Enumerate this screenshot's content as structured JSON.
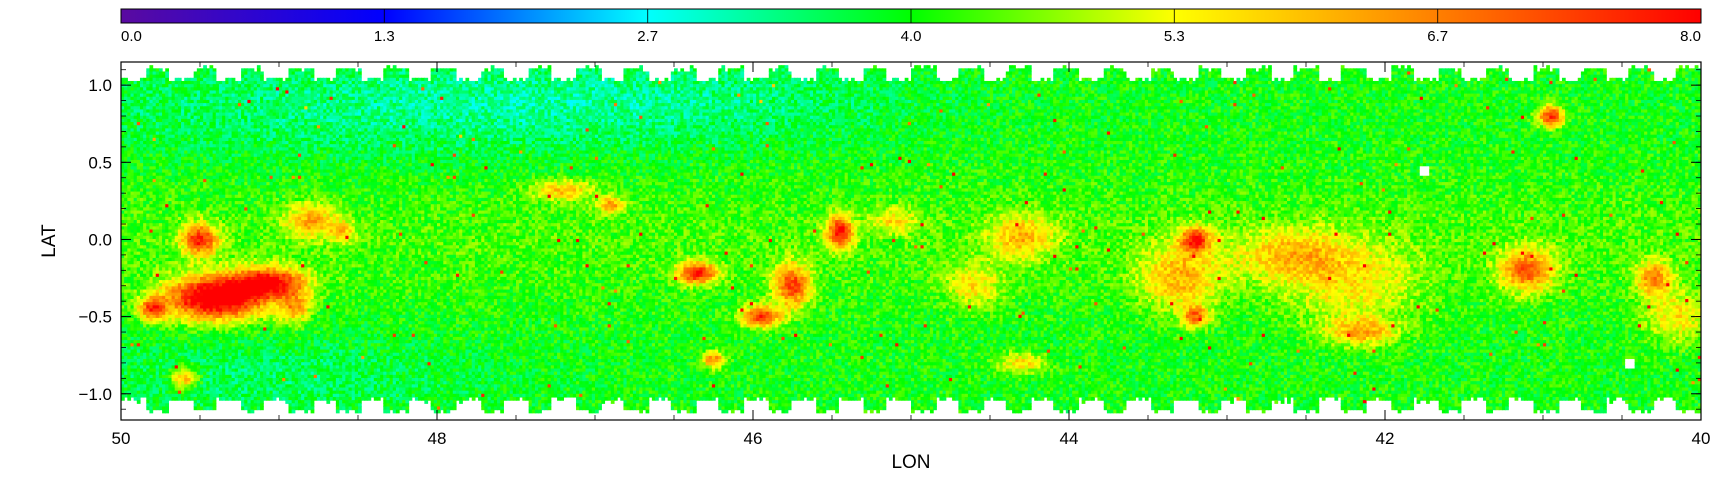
{
  "chart_data": {
    "type": "heatmap",
    "title": "",
    "xlabel": "LON",
    "ylabel": "LAT",
    "xlim": [
      50,
      40
    ],
    "ylim": [
      -1.17,
      1.15
    ],
    "x_ticks": [
      "50",
      "48",
      "46",
      "44",
      "42",
      "40"
    ],
    "x_tick_values": [
      50,
      48,
      46,
      44,
      42,
      40
    ],
    "y_ticks": [
      "1.0",
      "0.5",
      "0.0",
      "−0.5",
      "−1.0"
    ],
    "y_tick_values": [
      1.0,
      0.5,
      0.0,
      -0.5,
      -1.0
    ],
    "colorbar": {
      "range": [
        0.0,
        8.0
      ],
      "ticks": [
        "0.0",
        "1.3",
        "2.7",
        "4.0",
        "5.3",
        "6.7",
        "8.0"
      ],
      "tick_values": [
        0.0,
        1.333,
        2.667,
        4.0,
        5.333,
        6.667,
        8.0
      ],
      "colormap_stops": [
        "#5a0aa0",
        "#0000ff",
        "#00ffff",
        "#00ff00",
        "#ffff00",
        "#ff7f00",
        "#ff0000"
      ]
    },
    "data_extent": {
      "lat_min": -1.05,
      "lat_max": 1.05,
      "edge_jitter": 0.06
    },
    "background_value": 4.0,
    "features": [
      {
        "lon": 49.4,
        "lat": -0.38,
        "sigma_lon": 0.22,
        "sigma_lat": 0.1,
        "amp": 4.8
      },
      {
        "lon": 49.05,
        "lat": -0.28,
        "sigma_lon": 0.16,
        "sigma_lat": 0.07,
        "amp": 3.6
      },
      {
        "lon": 49.5,
        "lat": 0.0,
        "sigma_lon": 0.08,
        "sigma_lat": 0.07,
        "amp": 3.4
      },
      {
        "lon": 49.8,
        "lat": -0.45,
        "sigma_lon": 0.06,
        "sigma_lat": 0.05,
        "amp": 3.0
      },
      {
        "lon": 48.9,
        "lat": -0.45,
        "sigma_lon": 0.07,
        "sigma_lat": 0.07,
        "amp": 2.0
      },
      {
        "lon": 48.8,
        "lat": 0.12,
        "sigma_lon": 0.12,
        "sigma_lat": 0.08,
        "amp": 1.9
      },
      {
        "lon": 48.6,
        "lat": 0.05,
        "sigma_lon": 0.06,
        "sigma_lat": 0.05,
        "amp": 1.5
      },
      {
        "lon": 49.6,
        "lat": -0.9,
        "sigma_lon": 0.06,
        "sigma_lat": 0.05,
        "amp": 2.4
      },
      {
        "lon": 47.2,
        "lat": 0.32,
        "sigma_lon": 0.14,
        "sigma_lat": 0.05,
        "amp": 1.8
      },
      {
        "lon": 46.9,
        "lat": 0.22,
        "sigma_lon": 0.06,
        "sigma_lat": 0.04,
        "amp": 2.2
      },
      {
        "lon": 46.35,
        "lat": -0.22,
        "sigma_lon": 0.09,
        "sigma_lat": 0.05,
        "amp": 3.6
      },
      {
        "lon": 45.75,
        "lat": -0.3,
        "sigma_lon": 0.08,
        "sigma_lat": 0.1,
        "amp": 3.2
      },
      {
        "lon": 45.95,
        "lat": -0.5,
        "sigma_lon": 0.09,
        "sigma_lat": 0.05,
        "amp": 3.3
      },
      {
        "lon": 45.45,
        "lat": 0.05,
        "sigma_lon": 0.06,
        "sigma_lat": 0.08,
        "amp": 3.6
      },
      {
        "lon": 46.25,
        "lat": -0.78,
        "sigma_lon": 0.05,
        "sigma_lat": 0.04,
        "amp": 2.6
      },
      {
        "lon": 45.1,
        "lat": 0.12,
        "sigma_lon": 0.1,
        "sigma_lat": 0.06,
        "amp": 1.4
      },
      {
        "lon": 44.3,
        "lat": 0.02,
        "sigma_lon": 0.15,
        "sigma_lat": 0.1,
        "amp": 1.8
      },
      {
        "lon": 44.6,
        "lat": -0.3,
        "sigma_lon": 0.12,
        "sigma_lat": 0.1,
        "amp": 1.5
      },
      {
        "lon": 44.3,
        "lat": -0.8,
        "sigma_lon": 0.12,
        "sigma_lat": 0.05,
        "amp": 1.6
      },
      {
        "lon": 43.2,
        "lat": 0.0,
        "sigma_lon": 0.07,
        "sigma_lat": 0.06,
        "amp": 3.2
      },
      {
        "lon": 43.3,
        "lat": -0.25,
        "sigma_lon": 0.18,
        "sigma_lat": 0.15,
        "amp": 1.9
      },
      {
        "lon": 43.2,
        "lat": -0.5,
        "sigma_lon": 0.06,
        "sigma_lat": 0.05,
        "amp": 2.6
      },
      {
        "lon": 42.6,
        "lat": -0.1,
        "sigma_lon": 0.25,
        "sigma_lat": 0.12,
        "amp": 1.6
      },
      {
        "lon": 42.15,
        "lat": -0.6,
        "sigma_lon": 0.15,
        "sigma_lat": 0.06,
        "amp": 2.0
      },
      {
        "lon": 42.2,
        "lat": -0.3,
        "sigma_lon": 0.3,
        "sigma_lat": 0.2,
        "amp": 1.3
      },
      {
        "lon": 41.1,
        "lat": -0.2,
        "sigma_lon": 0.12,
        "sigma_lat": 0.1,
        "amp": 2.8
      },
      {
        "lon": 40.95,
        "lat": 0.8,
        "sigma_lon": 0.06,
        "sigma_lat": 0.05,
        "amp": 3.4
      },
      {
        "lon": 40.3,
        "lat": -0.25,
        "sigma_lon": 0.08,
        "sigma_lat": 0.08,
        "amp": 2.4
      },
      {
        "lon": 40.15,
        "lat": -0.5,
        "sigma_lon": 0.15,
        "sigma_lat": 0.12,
        "amp": 1.5
      }
    ],
    "cool_regions": [
      {
        "lon": 48.5,
        "lat": 0.85,
        "sigma_lon": 1.5,
        "sigma_lat": 0.25,
        "amp": -0.6
      },
      {
        "lon": 46.5,
        "lat": 0.9,
        "sigma_lon": 1.2,
        "sigma_lat": 0.2,
        "amp": -0.5
      },
      {
        "lon": 49.0,
        "lat": -0.9,
        "sigma_lon": 1.0,
        "sigma_lat": 0.2,
        "amp": -0.5
      }
    ],
    "white_spots": [
      {
        "lon": 41.75,
        "lat": 0.45
      },
      {
        "lon": 40.45,
        "lat": -0.8
      }
    ]
  }
}
